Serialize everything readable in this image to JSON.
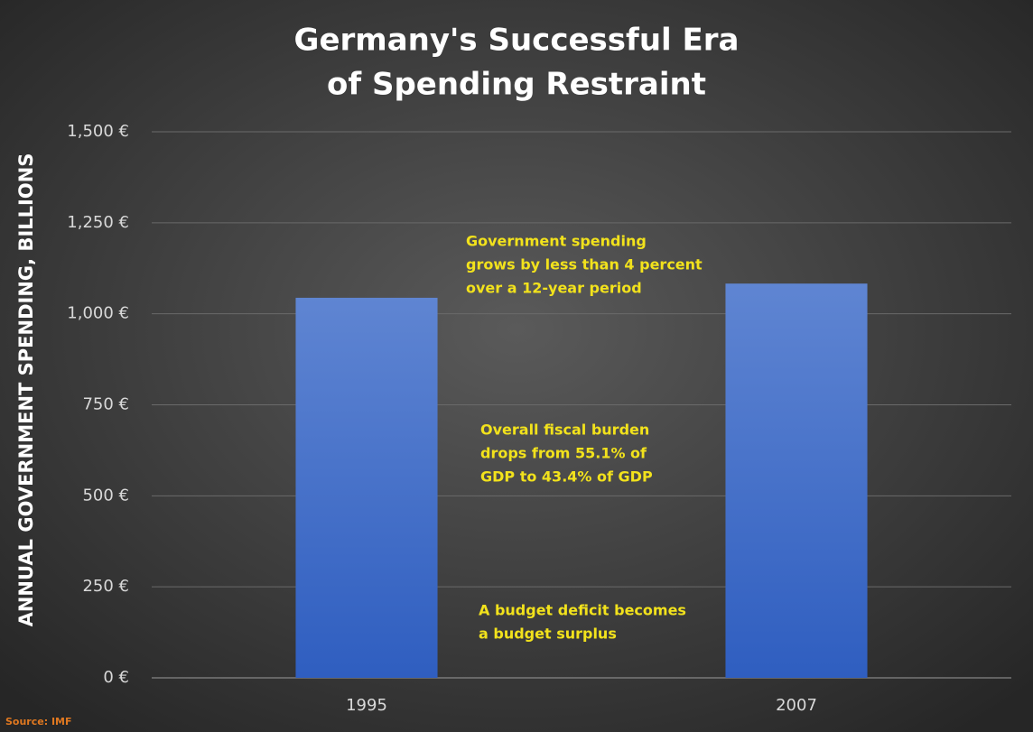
{
  "chart_data": {
    "type": "bar",
    "title": [
      "Germany's Successful Era",
      "of Spending Restraint"
    ],
    "y_label": "ANNUAL GOVERNMENT SPENDING, BILLIONS",
    "categories": [
      "1995",
      "2007"
    ],
    "values": [
      1044,
      1083
    ],
    "color": "#4a72c8",
    "ylim": [
      0,
      1500
    ],
    "yticks": [
      {
        "value": 0,
        "label": "0 €"
      },
      {
        "value": 250,
        "label": "250 €"
      },
      {
        "value": 500,
        "label": "500 €"
      },
      {
        "value": 750,
        "label": "750 €"
      },
      {
        "value": 1000,
        "label": "1,000 €"
      },
      {
        "value": 1250,
        "label": "1,250 €"
      },
      {
        "value": 1500,
        "label": "1,500 €"
      }
    ],
    "grid": true,
    "annotations": [
      [
        "Government spending",
        "grows by less than 4 percent",
        "over a 12-year period"
      ],
      [
        "Overall fiscal burden",
        "drops from 55.1% of",
        "GDP to 43.4% of GDP"
      ],
      [
        "A budget deficit becomes",
        "a budget surplus"
      ]
    ],
    "source": "Source: IMF"
  }
}
